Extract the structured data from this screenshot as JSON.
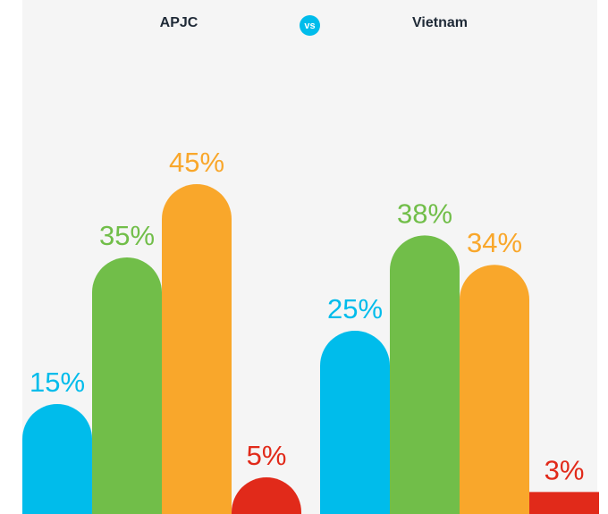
{
  "header": {
    "left_label": "APJC",
    "vs_label": "vs",
    "right_label": "Vietnam"
  },
  "colors": {
    "blue": "#00bceb",
    "green": "#71be49",
    "orange": "#f9a72b",
    "red": "#e12a1a"
  },
  "chart_data": [
    {
      "type": "bar",
      "title": "APJC",
      "values": [
        15,
        35,
        45,
        5
      ],
      "labels": [
        "15%",
        "35%",
        "45%",
        "5%"
      ],
      "colors": [
        "#00bceb",
        "#71be49",
        "#f9a72b",
        "#e12a1a"
      ],
      "ylim": [
        0,
        50
      ]
    },
    {
      "type": "bar",
      "title": "Vietnam",
      "values": [
        25,
        38,
        34,
        3
      ],
      "labels": [
        "25%",
        "38%",
        "34%",
        "3%"
      ],
      "colors": [
        "#00bceb",
        "#71be49",
        "#f9a72b",
        "#e12a1a"
      ],
      "ylim": [
        0,
        50
      ]
    }
  ]
}
